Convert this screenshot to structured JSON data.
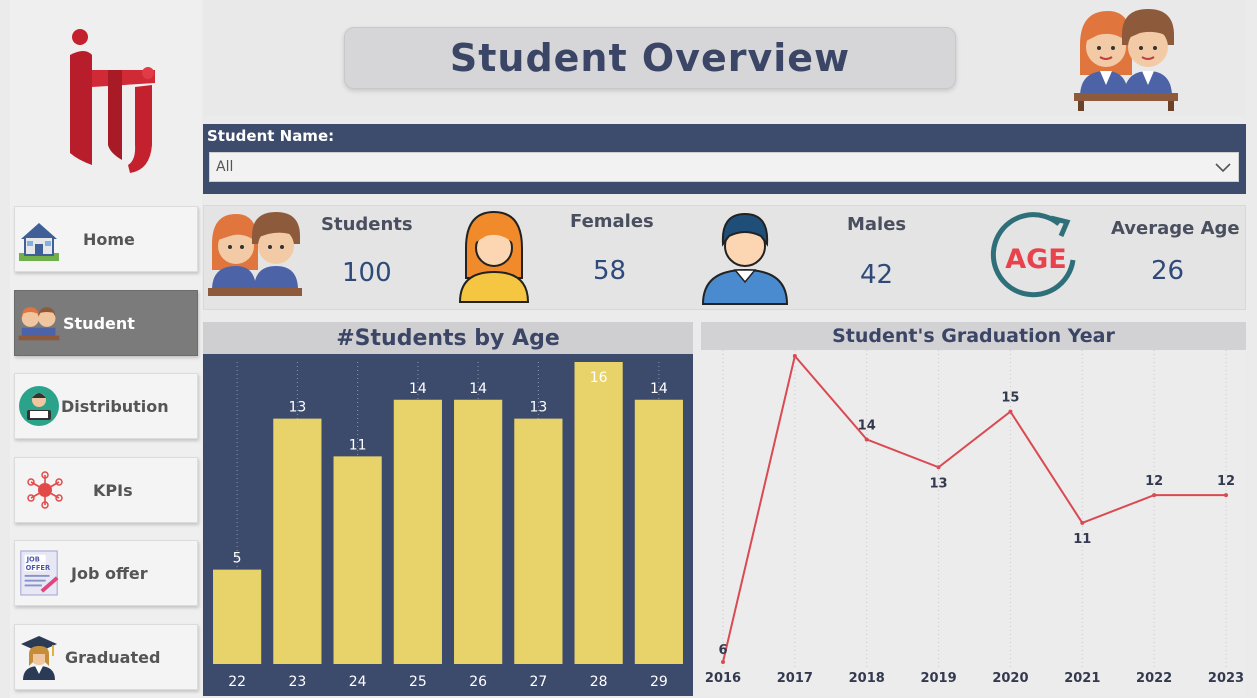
{
  "header": {
    "title": "Student Overview"
  },
  "sidebar": {
    "items": [
      {
        "label": "Home",
        "icon": "house-icon"
      },
      {
        "label": "Student",
        "icon": "students-icon",
        "active": true
      },
      {
        "label": "Distribution",
        "icon": "reader-icon"
      },
      {
        "label": "KPIs",
        "icon": "kpi-network-icon"
      },
      {
        "label": "Job offer",
        "icon": "job-offer-icon"
      },
      {
        "label": "Graduated",
        "icon": "graduate-icon"
      }
    ]
  },
  "filter": {
    "label": "Student Name:",
    "value": "All"
  },
  "kpis": {
    "students": {
      "label": "Students",
      "value": "100"
    },
    "females": {
      "label": "Females",
      "value": "58"
    },
    "males": {
      "label": "Males",
      "value": "42"
    },
    "avg_age": {
      "label": "Average Age",
      "value": "26",
      "icon_text": "AGE"
    }
  },
  "colors": {
    "navy": "#3c4a6c",
    "bar": "#e8d36a",
    "line": "#d94a52",
    "accent_red": "#c4212f"
  },
  "chart_data": [
    {
      "type": "bar",
      "title": "#Students by Age",
      "categories": [
        "22",
        "23",
        "24",
        "25",
        "26",
        "27",
        "28",
        "29"
      ],
      "values": [
        5,
        13,
        11,
        14,
        14,
        13,
        16,
        14
      ],
      "ylim": [
        0,
        16
      ]
    },
    {
      "type": "line",
      "title": "Student's Graduation Year",
      "x": [
        "2016",
        "2017",
        "2018",
        "2019",
        "2020",
        "2021",
        "2022",
        "2023"
      ],
      "values": [
        6,
        17,
        14,
        13,
        15,
        11,
        12,
        12
      ]
    }
  ]
}
